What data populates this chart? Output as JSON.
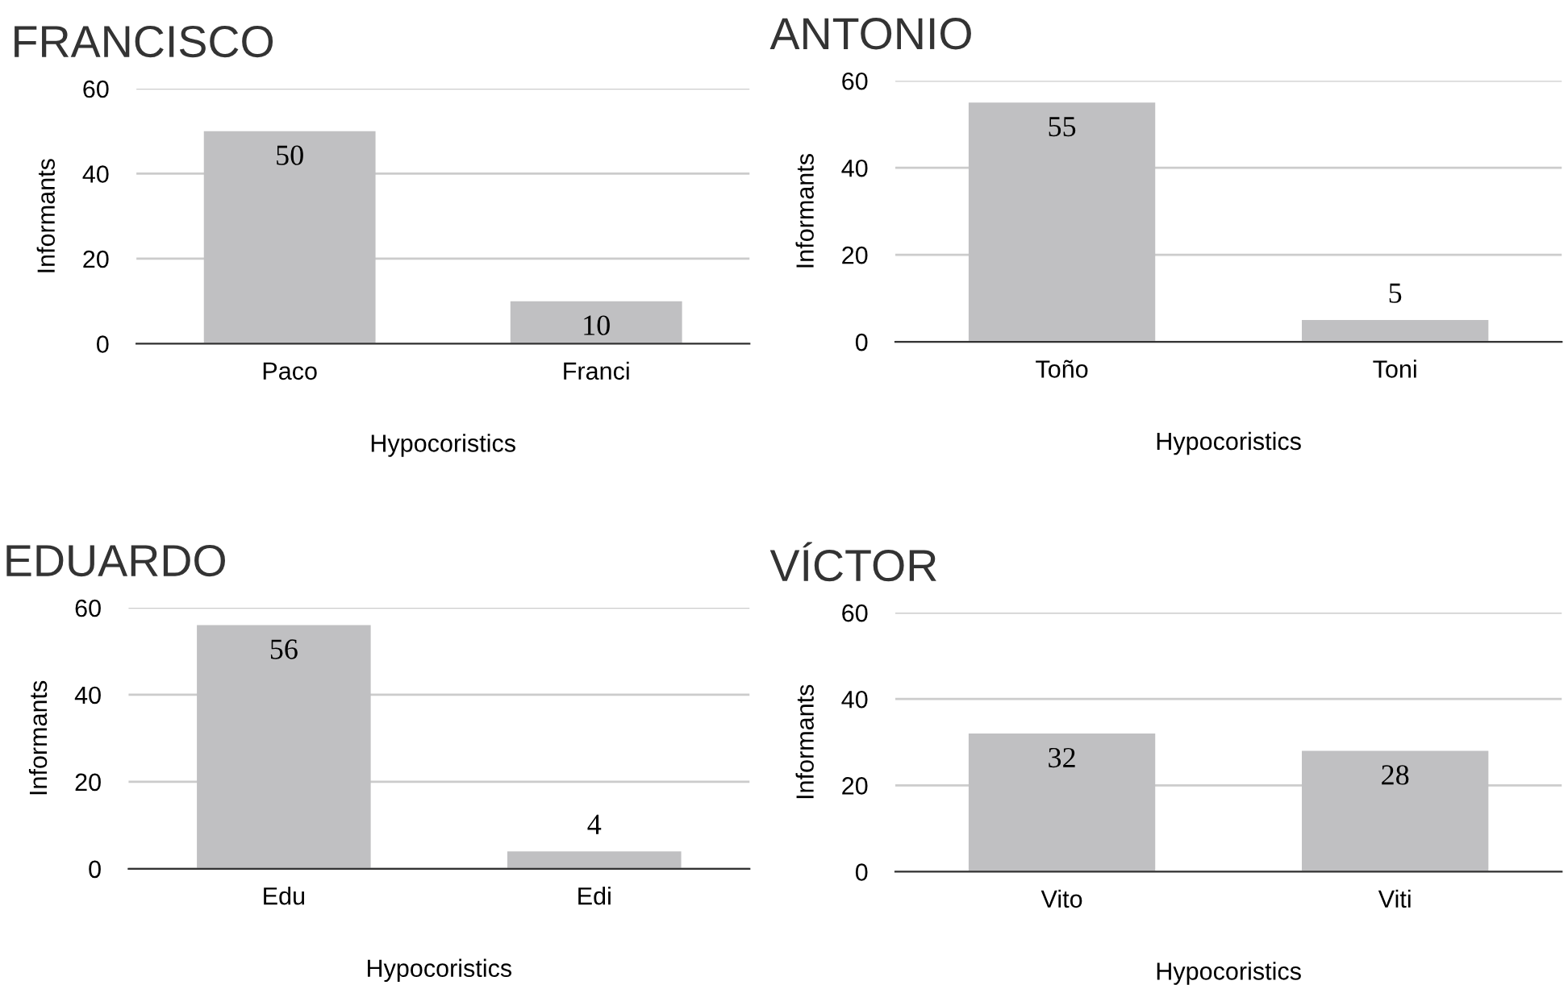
{
  "chart_data": [
    {
      "type": "bar",
      "title": "FRANCISCO",
      "xlabel": "Hypocoristics",
      "ylabel": "Informants",
      "categories": [
        "Paco",
        "Franci"
      ],
      "values": [
        50,
        10
      ],
      "color": "#c0c0c2",
      "ylim": [
        0,
        60
      ],
      "yticks": [
        0,
        20,
        40,
        60
      ],
      "grid": "y",
      "data_labels": true
    },
    {
      "type": "bar",
      "title": "ANTONIO",
      "xlabel": "Hypocoristics",
      "ylabel": "Informants",
      "categories": [
        "Toño",
        "Toni"
      ],
      "values": [
        55,
        5
      ],
      "color": "#c0c0c2",
      "ylim": [
        0,
        60
      ],
      "yticks": [
        0,
        20,
        40,
        60
      ],
      "grid": "y",
      "data_labels": true
    },
    {
      "type": "bar",
      "title": "EDUARDO",
      "xlabel": "Hypocoristics",
      "ylabel": "Informants",
      "categories": [
        "Edu",
        "Edi"
      ],
      "values": [
        56,
        4
      ],
      "color": "#c0c0c2",
      "ylim": [
        0,
        60
      ],
      "yticks": [
        0,
        20,
        40,
        60
      ],
      "grid": "y",
      "data_labels": true
    },
    {
      "type": "bar",
      "title": "VÍCTOR",
      "xlabel": "Hypocoristics",
      "ylabel": "Informants",
      "categories": [
        "Vito",
        "Viti"
      ],
      "values": [
        32,
        28
      ],
      "color": "#c0c0c2",
      "ylim": [
        0,
        60
      ],
      "yticks": [
        0,
        20,
        40,
        60
      ],
      "grid": "y",
      "data_labels": true
    }
  ]
}
